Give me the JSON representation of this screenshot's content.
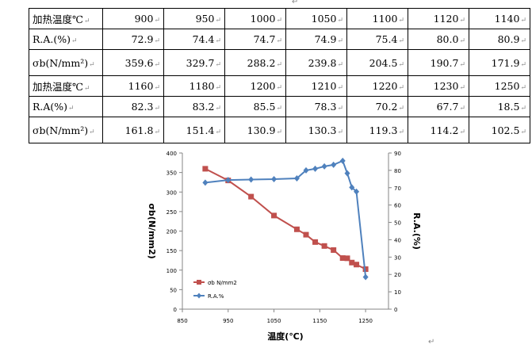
{
  "table": {
    "rows": [
      [
        "加热温度℃",
        "900",
        "950",
        "1000",
        "1050",
        "1100",
        "1120",
        "1140"
      ],
      [
        "R.A.(%)",
        "72.9",
        "74.4",
        "74.7",
        "74.9",
        "75.4",
        "80.0",
        "80.9"
      ],
      [
        "σb(N/mm²)",
        "359.6",
        "329.7",
        "288.2",
        "239.8",
        "204.5",
        "190.7",
        "171.9"
      ],
      [
        "加热温度℃",
        "1160",
        "1180",
        "1200",
        "1210",
        "1220",
        "1230",
        "1250"
      ],
      [
        "R.A(%)",
        "82.3",
        "83.2",
        "85.5",
        "78.3",
        "70.2",
        "67.7",
        "18.5"
      ],
      [
        "σb(N/mm²)",
        "161.8",
        "151.4",
        "130.9",
        "130.3",
        "119.3",
        "114.2",
        "102.5"
      ]
    ],
    "paragraph_mark": "↵"
  },
  "chart_data": {
    "type": "line",
    "xlabel": "温度(℃)",
    "ylabel_left": "σb(N/mm2)",
    "ylabel_right": "R.A.(%)",
    "xlim": [
      850,
      1300
    ],
    "xticks": [
      "850",
      "950",
      "1050",
      "1150",
      "1250"
    ],
    "ylim_left": [
      0,
      400
    ],
    "yticks_left": [
      "0",
      "50",
      "100",
      "150",
      "200",
      "250",
      "300",
      "350",
      "400"
    ],
    "ylim_right": [
      0,
      90
    ],
    "yticks_right": [
      "0",
      "10",
      "20",
      "30",
      "40",
      "50",
      "60",
      "70",
      "80",
      "90"
    ],
    "legend_position": "bottom-left",
    "x": [
      900,
      950,
      1000,
      1050,
      1100,
      1120,
      1140,
      1160,
      1180,
      1200,
      1210,
      1220,
      1230,
      1250
    ],
    "series": [
      {
        "name": "σb N/mm2",
        "axis": "left",
        "color": "#c0504d",
        "marker": "square",
        "values": [
          359.6,
          329.7,
          288.2,
          239.8,
          204.5,
          190.7,
          171.9,
          161.8,
          151.4,
          130.9,
          130.3,
          119.3,
          114.2,
          102.5
        ]
      },
      {
        "name": "R.A.%",
        "axis": "right",
        "color": "#4f81bd",
        "marker": "diamond",
        "values": [
          72.9,
          74.4,
          74.7,
          74.9,
          75.4,
          80.0,
          80.9,
          82.3,
          83.2,
          85.5,
          78.3,
          70.2,
          67.7,
          18.5
        ]
      }
    ]
  }
}
